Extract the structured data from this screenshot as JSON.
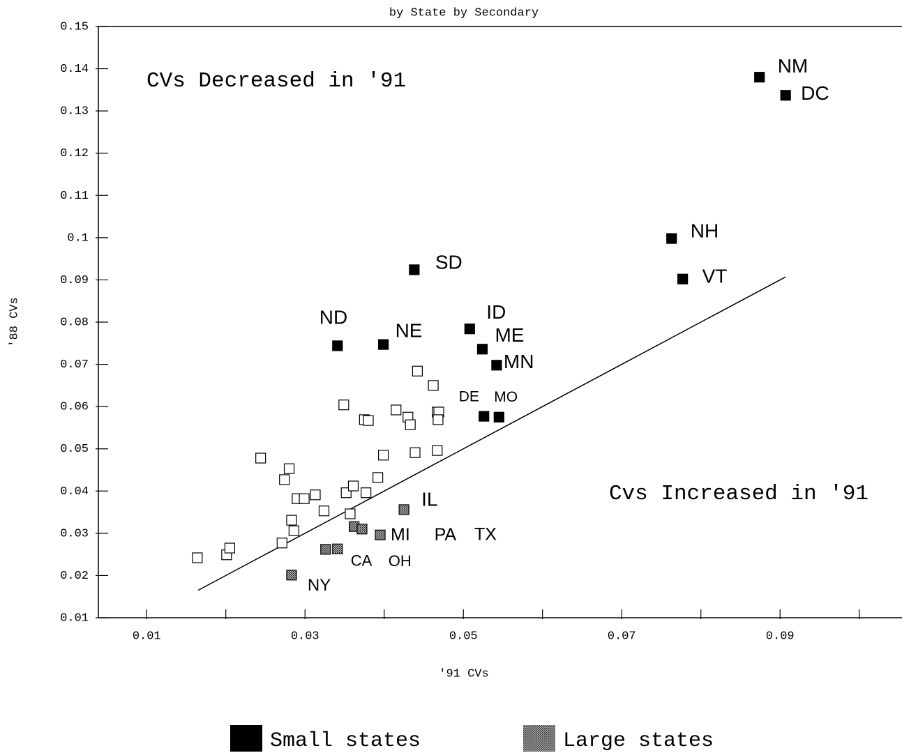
{
  "chart_data": {
    "type": "scatter",
    "title": "by State by Secondary",
    "xlabel": "'91 CVs",
    "ylabel": "'88 CVs",
    "xlim": [
      0.0039,
      0.1054
    ],
    "ylim": [
      0.01,
      0.15
    ],
    "xticks": [
      0.01,
      0.03,
      0.05,
      0.07,
      0.09
    ],
    "xminorticks": [
      0.02,
      0.04,
      0.06,
      0.08,
      0.1
    ],
    "yticks": [
      0.01,
      0.02,
      0.03,
      0.04,
      0.05,
      0.06,
      0.07,
      0.08,
      0.09,
      0.1,
      0.11,
      0.12,
      0.13,
      0.14,
      0.15
    ],
    "annotations": [
      "CVs Decreased in '91",
      "Cvs Increased in '91"
    ],
    "reference_line": {
      "x": [
        0.0165,
        0.0907
      ],
      "y": [
        0.0165,
        0.0907
      ],
      "color": "#000000"
    },
    "legend": "bottom",
    "series": [
      {
        "name": "Small states",
        "color": "#000000",
        "fill": "solid",
        "labels": [
          "NM",
          "DC",
          "NH",
          "VT",
          "SD",
          "ND",
          "NE",
          "ID",
          "ME",
          "MN",
          "DE",
          "MO"
        ],
        "x": [
          0.0874,
          0.0907,
          0.0763,
          0.0777,
          0.0438,
          0.0341,
          0.0399,
          0.0508,
          0.0524,
          0.0542,
          0.0526,
          0.0545
        ],
        "values": [
          0.138,
          0.1337,
          0.0998,
          0.0902,
          0.0924,
          0.0744,
          0.0747,
          0.0784,
          0.0736,
          0.0698,
          0.0577,
          0.0575
        ]
      },
      {
        "name": "Large states",
        "color": "#555555",
        "fill": "hatched",
        "labels": [
          "IL",
          "MI",
          "PA",
          "TX",
          "CA",
          "OH",
          "NY"
        ],
        "x": [
          0.0425,
          0.0395,
          0.0362,
          0.0372,
          0.0326,
          0.0341,
          0.0283
        ],
        "values": [
          0.0356,
          0.0296,
          0.0316,
          0.031,
          0.0262,
          0.0263,
          0.0201
        ]
      },
      {
        "color": "#000000",
        "fill": "hollow",
        "x": [
          0.0164,
          0.0201,
          0.0205,
          0.0244,
          0.0274,
          0.028,
          0.0271,
          0.0283,
          0.0286,
          0.029,
          0.0299,
          0.0313,
          0.0324,
          0.0349,
          0.0352,
          0.0357,
          0.0361,
          0.0375,
          0.038,
          0.0377,
          0.0392,
          0.0399,
          0.0415,
          0.043,
          0.0433,
          0.0439,
          0.0442,
          0.0462,
          0.0467,
          0.0469,
          0.0468,
          0.0467
        ],
        "values": [
          0.0242,
          0.0249,
          0.0265,
          0.0478,
          0.0427,
          0.0453,
          0.0277,
          0.0331,
          0.0306,
          0.0382,
          0.0382,
          0.0391,
          0.0353,
          0.0604,
          0.0396,
          0.0346,
          0.0412,
          0.0569,
          0.0567,
          0.0396,
          0.0432,
          0.0485,
          0.0592,
          0.0575,
          0.0557,
          0.0491,
          0.0684,
          0.065,
          0.0587,
          0.0587,
          0.0569,
          0.0496
        ]
      }
    ]
  }
}
